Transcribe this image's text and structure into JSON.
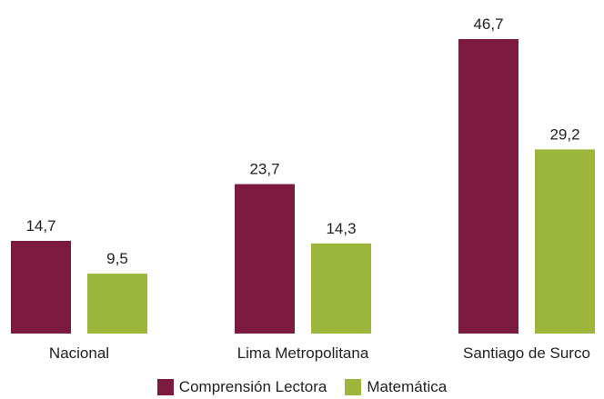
{
  "chart_data": {
    "type": "bar",
    "title": "",
    "xlabel": "",
    "ylabel": "",
    "categories": [
      "Nacional",
      "Lima Metropolitana",
      "Santiago de Surco"
    ],
    "series": [
      {
        "name": "Comprensión Lectora",
        "color": "#7b1a3e",
        "values": [
          14.7,
          23.7,
          46.7
        ],
        "labels": [
          "14,7",
          "23,7",
          "46,7"
        ]
      },
      {
        "name": "Matemática",
        "color": "#9bb63a",
        "values": [
          9.5,
          14.3,
          29.2
        ],
        "labels": [
          "9,5",
          "14,3",
          "29,2"
        ]
      }
    ],
    "ylim": [
      0,
      46.7
    ],
    "grid": false,
    "legend_position": "bottom"
  }
}
